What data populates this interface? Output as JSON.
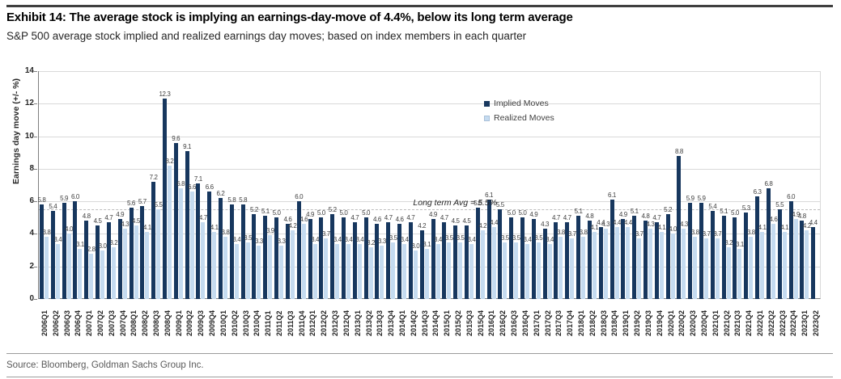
{
  "header": {
    "title": "Exhibit 14: The average stock is implying an earnings-day-move of 4.4%, below its long term average",
    "subtitle": "S&P 500 average stock implied and realized earnings day moves; based on index members in each quarter"
  },
  "source": "Source: Bloomberg, Goldman Sachs Group Inc.",
  "colors": {
    "implied": "#17375E",
    "realized": "#C5DBF0",
    "gridline": "#D9D9D9",
    "axis": "#808080",
    "label_text": "#404040"
  },
  "chart_data": {
    "type": "bar",
    "title": "",
    "xlabel": "",
    "ylabel": "Earnings day move (+/- %)",
    "ylim": [
      0,
      14
    ],
    "yticks": [
      0,
      2,
      4,
      6,
      8,
      10,
      12,
      14
    ],
    "grid": true,
    "legend_position": "inside-top-center",
    "legend": [
      "Implied Moves",
      "Realized Moves"
    ],
    "annotation": {
      "label": "Long term Avg = 5.5%",
      "value": 5.5
    },
    "categories": [
      "2006Q1",
      "2006Q2",
      "2006Q3",
      "2006Q4",
      "2007Q1",
      "2007Q2",
      "2007Q3",
      "2007Q4",
      "2008Q1",
      "2008Q2",
      "2008Q3",
      "2008Q4",
      "2009Q1",
      "2009Q2",
      "2009Q3",
      "2009Q4",
      "2010Q1",
      "2010Q2",
      "2010Q3",
      "2010Q4",
      "2011Q1",
      "2011Q2",
      "2011Q3",
      "2011Q4",
      "2012Q1",
      "2012Q2",
      "2012Q3",
      "2012Q4",
      "2013Q1",
      "2013Q2",
      "2013Q3",
      "2013Q4",
      "2014Q1",
      "2014Q2",
      "2014Q3",
      "2014Q4",
      "2015Q1",
      "2015Q2",
      "2015Q3",
      "2015Q4",
      "2016Q1",
      "2016Q2",
      "2016Q3",
      "2016Q4",
      "2017Q1",
      "2017Q2",
      "2017Q3",
      "2017Q4",
      "2018Q1",
      "2018Q2",
      "2018Q3",
      "2018Q4",
      "2019Q1",
      "2019Q2",
      "2019Q3",
      "2019Q4",
      "2020Q1",
      "2020Q2",
      "2020Q3",
      "2020Q4",
      "2021Q1",
      "2021Q2",
      "2021Q3",
      "2021Q4",
      "2022Q1",
      "2022Q2",
      "2022Q3",
      "2022Q4",
      "2023Q1",
      "2023Q2"
    ],
    "series": [
      {
        "name": "Implied Moves",
        "color": "#17375E",
        "values": [
          5.8,
          5.4,
          5.9,
          6.0,
          4.8,
          4.5,
          4.7,
          4.9,
          5.6,
          5.7,
          7.2,
          12.3,
          9.6,
          9.1,
          7.1,
          6.6,
          6.2,
          5.8,
          5.8,
          5.2,
          5.1,
          5.0,
          4.6,
          6.0,
          4.9,
          5.0,
          5.2,
          5.0,
          4.7,
          5.0,
          4.6,
          4.7,
          4.6,
          4.7,
          4.2,
          4.9,
          4.7,
          4.5,
          4.5,
          5.6,
          6.1,
          5.5,
          5.0,
          5.0,
          4.9,
          4.3,
          4.7,
          4.7,
          5.1,
          4.8,
          4.4,
          6.1,
          4.9,
          5.1,
          4.8,
          4.7,
          5.2,
          8.8,
          5.9,
          5.9,
          5.4,
          5.1,
          5.0,
          5.3,
          6.3,
          6.8,
          5.5,
          6.0,
          4.8,
          4.4
        ]
      },
      {
        "name": "Realized Moves",
        "color": "#C5DBF0",
        "values": [
          3.8,
          3.4,
          4.0,
          3.1,
          2.8,
          3.0,
          3.2,
          4.3,
          4.5,
          4.1,
          5.5,
          8.2,
          6.8,
          6.6,
          4.7,
          4.1,
          3.8,
          3.4,
          3.5,
          3.3,
          3.9,
          3.3,
          4.2,
          4.6,
          3.4,
          3.7,
          3.4,
          3.4,
          3.4,
          3.2,
          3.3,
          3.5,
          3.4,
          3.0,
          3.1,
          3.4,
          3.5,
          3.5,
          3.4,
          4.2,
          4.4,
          3.5,
          3.5,
          3.4,
          3.5,
          3.4,
          3.8,
          3.7,
          3.8,
          4.1,
          4.3,
          4.4,
          4.4,
          3.7,
          4.3,
          4.1,
          4.0,
          4.3,
          3.8,
          3.7,
          3.7,
          3.2,
          3.1,
          3.8,
          4.1,
          4.6,
          4.1,
          4.9,
          4.2,
          null
        ]
      }
    ]
  }
}
